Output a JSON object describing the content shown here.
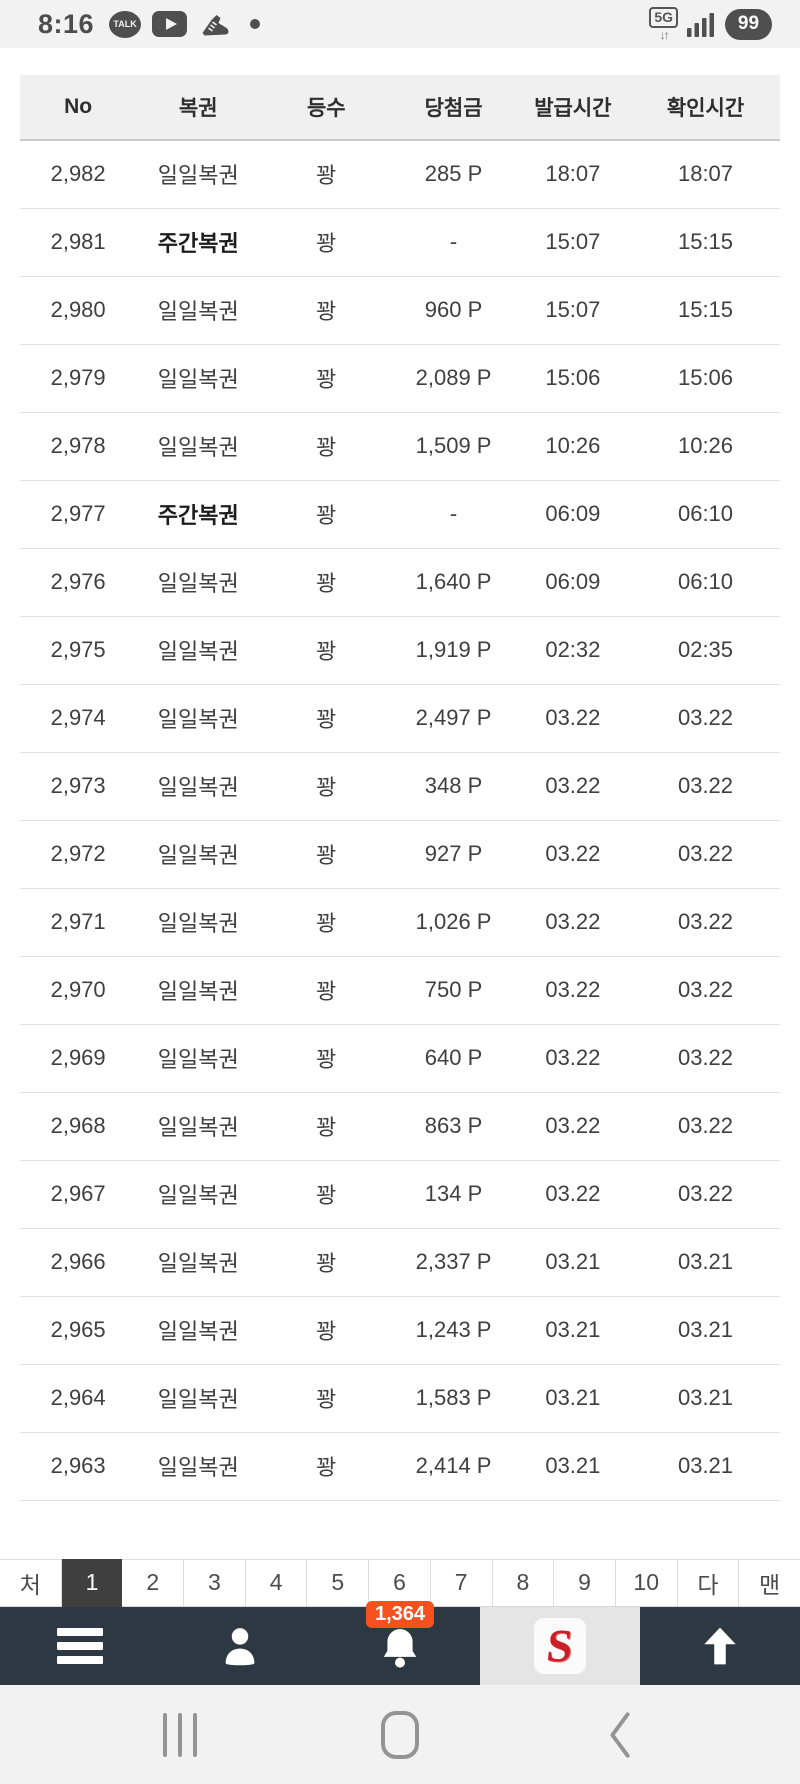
{
  "status_bar": {
    "time": "8:16",
    "kakao_label": "TALK",
    "network": "5G",
    "network_arrows": "↓↑",
    "battery": "99",
    "icons": [
      "kakaotalk-icon",
      "youtube-icon",
      "shoe-icon",
      "notification-dot-icon",
      "network-5g-icon",
      "signal-strength-icon",
      "battery-indicator"
    ]
  },
  "table": {
    "headers": [
      "No",
      "복권",
      "등수",
      "당첨금",
      "발급시간",
      "확인시간"
    ],
    "header_keys": [
      "no",
      "lottery",
      "rank",
      "prize",
      "issued-time",
      "confirmed-time"
    ],
    "rows": [
      {
        "no": "2,982",
        "lottery": "일일복권",
        "lottery_bold": false,
        "rank": "꽝",
        "prize": "285 P",
        "issued": "18:07",
        "confirmed": "18:07"
      },
      {
        "no": "2,981",
        "lottery": "주간복권",
        "lottery_bold": true,
        "rank": "꽝",
        "prize": "-",
        "issued": "15:07",
        "confirmed": "15:15"
      },
      {
        "no": "2,980",
        "lottery": "일일복권",
        "lottery_bold": false,
        "rank": "꽝",
        "prize": "960 P",
        "issued": "15:07",
        "confirmed": "15:15"
      },
      {
        "no": "2,979",
        "lottery": "일일복권",
        "lottery_bold": false,
        "rank": "꽝",
        "prize": "2,089 P",
        "issued": "15:06",
        "confirmed": "15:06"
      },
      {
        "no": "2,978",
        "lottery": "일일복권",
        "lottery_bold": false,
        "rank": "꽝",
        "prize": "1,509 P",
        "issued": "10:26",
        "confirmed": "10:26"
      },
      {
        "no": "2,977",
        "lottery": "주간복권",
        "lottery_bold": true,
        "rank": "꽝",
        "prize": "-",
        "issued": "06:09",
        "confirmed": "06:10"
      },
      {
        "no": "2,976",
        "lottery": "일일복권",
        "lottery_bold": false,
        "rank": "꽝",
        "prize": "1,640 P",
        "issued": "06:09",
        "confirmed": "06:10"
      },
      {
        "no": "2,975",
        "lottery": "일일복권",
        "lottery_bold": false,
        "rank": "꽝",
        "prize": "1,919 P",
        "issued": "02:32",
        "confirmed": "02:35"
      },
      {
        "no": "2,974",
        "lottery": "일일복권",
        "lottery_bold": false,
        "rank": "꽝",
        "prize": "2,497 P",
        "issued": "03.22",
        "confirmed": "03.22"
      },
      {
        "no": "2,973",
        "lottery": "일일복권",
        "lottery_bold": false,
        "rank": "꽝",
        "prize": "348 P",
        "issued": "03.22",
        "confirmed": "03.22"
      },
      {
        "no": "2,972",
        "lottery": "일일복권",
        "lottery_bold": false,
        "rank": "꽝",
        "prize": "927 P",
        "issued": "03.22",
        "confirmed": "03.22"
      },
      {
        "no": "2,971",
        "lottery": "일일복권",
        "lottery_bold": false,
        "rank": "꽝",
        "prize": "1,026 P",
        "issued": "03.22",
        "confirmed": "03.22"
      },
      {
        "no": "2,970",
        "lottery": "일일복권",
        "lottery_bold": false,
        "rank": "꽝",
        "prize": "750 P",
        "issued": "03.22",
        "confirmed": "03.22"
      },
      {
        "no": "2,969",
        "lottery": "일일복권",
        "lottery_bold": false,
        "rank": "꽝",
        "prize": "640 P",
        "issued": "03.22",
        "confirmed": "03.22"
      },
      {
        "no": "2,968",
        "lottery": "일일복권",
        "lottery_bold": false,
        "rank": "꽝",
        "prize": "863 P",
        "issued": "03.22",
        "confirmed": "03.22"
      },
      {
        "no": "2,967",
        "lottery": "일일복권",
        "lottery_bold": false,
        "rank": "꽝",
        "prize": "134 P",
        "issued": "03.22",
        "confirmed": "03.22"
      },
      {
        "no": "2,966",
        "lottery": "일일복권",
        "lottery_bold": false,
        "rank": "꽝",
        "prize": "2,337 P",
        "issued": "03.21",
        "confirmed": "03.21"
      },
      {
        "no": "2,965",
        "lottery": "일일복권",
        "lottery_bold": false,
        "rank": "꽝",
        "prize": "1,243 P",
        "issued": "03.21",
        "confirmed": "03.21"
      },
      {
        "no": "2,964",
        "lottery": "일일복권",
        "lottery_bold": false,
        "rank": "꽝",
        "prize": "1,583 P",
        "issued": "03.21",
        "confirmed": "03.21"
      },
      {
        "no": "2,963",
        "lottery": "일일복권",
        "lottery_bold": false,
        "rank": "꽝",
        "prize": "2,414 P",
        "issued": "03.21",
        "confirmed": "03.21"
      }
    ]
  },
  "pagination": {
    "items": [
      "처",
      "1",
      "2",
      "3",
      "4",
      "5",
      "6",
      "7",
      "8",
      "9",
      "10",
      "다",
      "맨"
    ],
    "active": "1"
  },
  "bottom_nav": {
    "notification_count": "1,364",
    "logo_letter": "S",
    "icons": [
      "menu-icon",
      "person-icon",
      "bell-icon",
      "site-logo",
      "arrow-up-icon"
    ]
  },
  "android_nav": {
    "icons": [
      "recent-apps-icon",
      "home-icon",
      "back-icon"
    ]
  },
  "colors": {
    "badge_orange": "#f4511e",
    "nav_dark": "#2e3843",
    "logo_red": "#cb1f27",
    "pagination_active_bg": "#3f3f3f",
    "header_bg": "#f0f0f0",
    "status_bar_bg": "#f2f2f2"
  }
}
